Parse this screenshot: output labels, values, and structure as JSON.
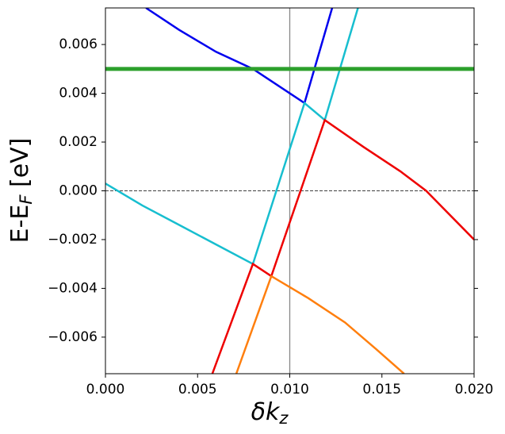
{
  "chart_data": {
    "type": "line",
    "xlabel": [
      "δk",
      "z"
    ],
    "ylabel": [
      "E-E",
      "F",
      " [eV]"
    ],
    "xlim": [
      0,
      0.02
    ],
    "ylim": [
      -0.0075,
      0.0075
    ],
    "xticks": [
      {
        "value": 0,
        "label": "0.000"
      },
      0.005,
      {
        "value": 0.01,
        "label": "0.010"
      },
      0.015,
      {
        "value": 0.02,
        "label": "0.020"
      }
    ],
    "yticks": [
      {
        "value": -0.006,
        "label": "−0.006"
      },
      {
        "value": -0.004,
        "label": "−0.004"
      },
      {
        "value": -0.002,
        "label": "−0.002"
      },
      {
        "value": 0,
        "label": "0.000"
      },
      0.002,
      0.004,
      0.006
    ],
    "vline": 0.01,
    "hline": 0,
    "series": [
      {
        "color": "#0000ee",
        "x": [
          0.0022,
          0.004,
          0.006,
          0.008,
          0.01,
          0.0108,
          0.0113,
          0.0123
        ],
        "values": [
          0.0075,
          0.0066,
          0.0057,
          0.005,
          0.004,
          0.0036,
          0.0049,
          0.0075
        ]
      },
      {
        "color": "#17becf",
        "x": [
          0,
          0.002,
          0.004,
          0.006,
          0.008,
          0.0108,
          0.0119,
          0.0137
        ],
        "values": [
          0.0003,
          -0.0006,
          -0.0014,
          -0.0022,
          -0.003,
          0.0036,
          0.0029,
          0.0075
        ]
      },
      {
        "color": "#ee0000",
        "x": [
          0.0058,
          0.008,
          0.009,
          0.0119,
          0.014,
          0.016,
          0.0174,
          0.02
        ],
        "values": [
          -0.0075,
          -0.003,
          -0.0035,
          0.0029,
          0.0018,
          0.0008,
          0,
          -0.002
        ]
      },
      {
        "color": "#ff7f0e",
        "x": [
          0.0071,
          0.009,
          0.011,
          0.013,
          0.0147,
          0.0162
        ],
        "values": [
          -0.0075,
          -0.0035,
          -0.0044,
          -0.0054,
          -0.0065,
          -0.0075
        ]
      },
      {
        "color": "#2ca02c",
        "x": [
          0,
          0.02
        ],
        "values": [
          0.005,
          0.005
        ],
        "width": 5
      }
    ]
  }
}
